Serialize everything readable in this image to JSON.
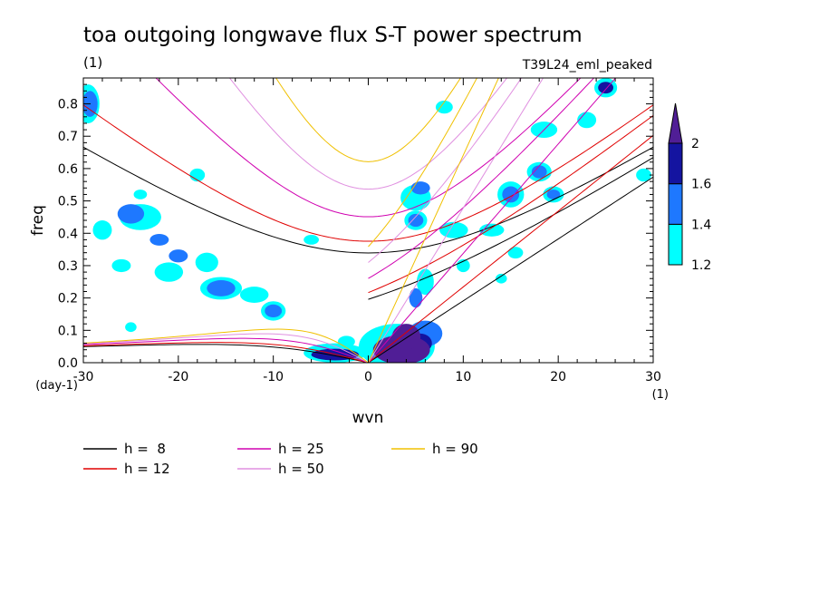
{
  "chart_data": {
    "type": "heatmap",
    "title": "toa outgoing longwave flux S-T power spectrum",
    "subtitle": "(1)",
    "case_label": "T39L24_eml_peaked",
    "xlabel": "wvn",
    "ylabel": "freq",
    "x_unit_label": "(1)",
    "y_unit_label": "(day-1)",
    "xlim": [
      -30,
      30
    ],
    "ylim": [
      0,
      0.88
    ],
    "x_ticks": [
      -30,
      -20,
      -10,
      0,
      10,
      20,
      30
    ],
    "x_tick_labels": [
      "-30",
      "-20",
      "-10",
      "0",
      "10",
      "20",
      "30"
    ],
    "y_ticks": [
      0,
      0.1,
      0.2,
      0.3,
      0.4,
      0.5,
      0.6,
      0.7,
      0.8
    ],
    "y_tick_labels": [
      "0.0",
      "0.1",
      "0.2",
      "0.3",
      "0.4",
      "0.5",
      "0.6",
      "0.7",
      "0.8"
    ],
    "colorbar": {
      "levels": [
        1.2,
        1.4,
        1.6,
        2
      ],
      "tick_labels": [
        "1.2",
        "1.4",
        "1.6",
        "2"
      ],
      "colors": [
        "#00ffff",
        "#1e78ff",
        "#1414a0",
        "#501e96"
      ]
    },
    "dispersion_curves": [
      {
        "h": 8,
        "label": "h =  8",
        "color": "#000000"
      },
      {
        "h": 12,
        "label": "h = 12",
        "color": "#e00000"
      },
      {
        "h": 25,
        "label": "h = 25",
        "color": "#d000b0"
      },
      {
        "h": 50,
        "label": "h = 50",
        "color": "#e090e0"
      },
      {
        "h": 90,
        "label": "h = 90",
        "color": "#f0c000"
      }
    ],
    "blobs": [
      {
        "x": 3.5,
        "y": 0.04,
        "rx": 3.0,
        "ry": 0.045,
        "level": 3
      },
      {
        "x": 4.0,
        "y": 0.08,
        "rx": 1.5,
        "ry": 0.04,
        "level": 3
      },
      {
        "x": 5.5,
        "y": 0.06,
        "rx": 1.2,
        "ry": 0.03,
        "level": 2
      },
      {
        "x": 3.0,
        "y": 0.05,
        "rx": 4.0,
        "ry": 0.07,
        "level": 0
      },
      {
        "x": 6.0,
        "y": 0.09,
        "rx": 1.8,
        "ry": 0.04,
        "level": 1
      },
      {
        "x": -3.5,
        "y": 0.025,
        "rx": 2.5,
        "ry": 0.018,
        "level": 2
      },
      {
        "x": -3.5,
        "y": 0.03,
        "rx": 3.3,
        "ry": 0.03,
        "level": 0
      },
      {
        "x": -2.3,
        "y": 0.065,
        "rx": 0.9,
        "ry": 0.018,
        "level": 0
      },
      {
        "x": -15.5,
        "y": 0.23,
        "rx": 1.5,
        "ry": 0.025,
        "level": 1
      },
      {
        "x": -15.5,
        "y": 0.23,
        "rx": 2.2,
        "ry": 0.035,
        "level": 0
      },
      {
        "x": -12.0,
        "y": 0.21,
        "rx": 1.5,
        "ry": 0.025,
        "level": 0
      },
      {
        "x": -17.0,
        "y": 0.31,
        "rx": 1.2,
        "ry": 0.03,
        "level": 0
      },
      {
        "x": -22.0,
        "y": 0.38,
        "rx": 1.0,
        "ry": 0.018,
        "level": 1
      },
      {
        "x": -25.0,
        "y": 0.46,
        "rx": 1.4,
        "ry": 0.03,
        "level": 1
      },
      {
        "x": -24.0,
        "y": 0.45,
        "rx": 2.2,
        "ry": 0.04,
        "level": 0
      },
      {
        "x": -20.0,
        "y": 0.33,
        "rx": 1.0,
        "ry": 0.02,
        "level": 1
      },
      {
        "x": -21.0,
        "y": 0.28,
        "rx": 1.5,
        "ry": 0.03,
        "level": 0
      },
      {
        "x": -28.0,
        "y": 0.41,
        "rx": 1.0,
        "ry": 0.03,
        "level": 0
      },
      {
        "x": -26.0,
        "y": 0.3,
        "rx": 1.0,
        "ry": 0.02,
        "level": 0
      },
      {
        "x": -29.3,
        "y": 0.8,
        "rx": 0.8,
        "ry": 0.04,
        "level": 1
      },
      {
        "x": -29.5,
        "y": 0.8,
        "rx": 1.2,
        "ry": 0.06,
        "level": 0
      },
      {
        "x": -18.0,
        "y": 0.58,
        "rx": 0.8,
        "ry": 0.02,
        "level": 0
      },
      {
        "x": -10.0,
        "y": 0.16,
        "rx": 0.9,
        "ry": 0.02,
        "level": 1
      },
      {
        "x": -10.0,
        "y": 0.16,
        "rx": 1.3,
        "ry": 0.03,
        "level": 0
      },
      {
        "x": 5.0,
        "y": 0.51,
        "rx": 1.6,
        "ry": 0.04,
        "level": 0
      },
      {
        "x": 5.5,
        "y": 0.54,
        "rx": 1.0,
        "ry": 0.02,
        "level": 1
      },
      {
        "x": 5.0,
        "y": 0.44,
        "rx": 0.8,
        "ry": 0.02,
        "level": 1
      },
      {
        "x": 5.0,
        "y": 0.44,
        "rx": 1.2,
        "ry": 0.03,
        "level": 0
      },
      {
        "x": 9.0,
        "y": 0.41,
        "rx": 1.5,
        "ry": 0.025,
        "level": 0
      },
      {
        "x": 13.0,
        "y": 0.41,
        "rx": 1.3,
        "ry": 0.02,
        "level": 0
      },
      {
        "x": 15.0,
        "y": 0.52,
        "rx": 0.9,
        "ry": 0.025,
        "level": 1
      },
      {
        "x": 15.0,
        "y": 0.52,
        "rx": 1.4,
        "ry": 0.04,
        "level": 0
      },
      {
        "x": 18.0,
        "y": 0.59,
        "rx": 0.8,
        "ry": 0.02,
        "level": 1
      },
      {
        "x": 18.0,
        "y": 0.59,
        "rx": 1.3,
        "ry": 0.03,
        "level": 0
      },
      {
        "x": 19.5,
        "y": 0.52,
        "rx": 0.7,
        "ry": 0.015,
        "level": 1
      },
      {
        "x": 19.5,
        "y": 0.52,
        "rx": 1.1,
        "ry": 0.025,
        "level": 0
      },
      {
        "x": 25.0,
        "y": 0.85,
        "rx": 0.8,
        "ry": 0.018,
        "level": 2
      },
      {
        "x": 25.0,
        "y": 0.85,
        "rx": 1.2,
        "ry": 0.03,
        "level": 0
      },
      {
        "x": 23.0,
        "y": 0.75,
        "rx": 1.0,
        "ry": 0.025,
        "level": 0
      },
      {
        "x": 18.5,
        "y": 0.72,
        "rx": 1.4,
        "ry": 0.025,
        "level": 0
      },
      {
        "x": 5.0,
        "y": 0.2,
        "rx": 0.7,
        "ry": 0.03,
        "level": 1
      },
      {
        "x": 6.0,
        "y": 0.25,
        "rx": 0.9,
        "ry": 0.04,
        "level": 0
      },
      {
        "x": 10.0,
        "y": 0.3,
        "rx": 0.7,
        "ry": 0.02,
        "level": 0
      },
      {
        "x": 29.0,
        "y": 0.58,
        "rx": 0.8,
        "ry": 0.02,
        "level": 0
      },
      {
        "x": 15.5,
        "y": 0.34,
        "rx": 0.8,
        "ry": 0.018,
        "level": 0
      },
      {
        "x": -24.0,
        "y": 0.52,
        "rx": 0.7,
        "ry": 0.015,
        "level": 0
      },
      {
        "x": 14.0,
        "y": 0.26,
        "rx": 0.6,
        "ry": 0.015,
        "level": 0
      },
      {
        "x": 8.0,
        "y": 0.79,
        "rx": 0.9,
        "ry": 0.02,
        "level": 0
      },
      {
        "x": -25.0,
        "y": 0.11,
        "rx": 0.6,
        "ry": 0.015,
        "level": 0
      },
      {
        "x": -6.0,
        "y": 0.38,
        "rx": 0.8,
        "ry": 0.015,
        "level": 0
      }
    ]
  }
}
